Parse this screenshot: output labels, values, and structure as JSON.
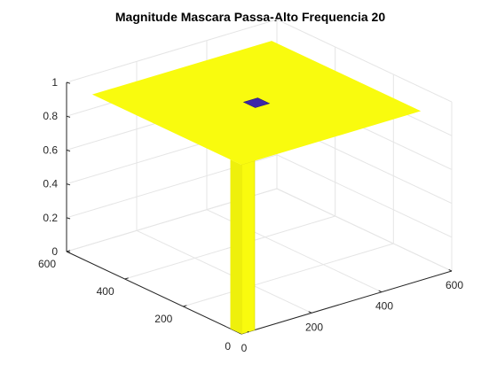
{
  "chart_data": {
    "type": "surface",
    "title": "Magnitude Mascara Passa-Alto Frequencia 20",
    "xlabel": "",
    "ylabel": "",
    "zlabel": "",
    "xlim": [
      0,
      600
    ],
    "ylim": [
      0,
      600
    ],
    "zlim": [
      0,
      1
    ],
    "x_ticks": [
      "0",
      "200",
      "400",
      "600"
    ],
    "y_ticks": [
      "0",
      "200",
      "400",
      "600"
    ],
    "z_ticks": [
      "0",
      "0.2",
      "0.4",
      "0.6",
      "0.8",
      "1"
    ],
    "grid": true,
    "description_values": {
      "mask_extent": [
        0,
        512
      ],
      "pass_value": 1,
      "stop_value": 0,
      "stop_region_center": [
        256,
        256
      ],
      "stop_region_radius": 20
    },
    "colors": {
      "surface_high": "#f9fb0e",
      "surface_low": "#3e26a8",
      "grid": "#e5e5e5",
      "axis": "#262626"
    }
  }
}
